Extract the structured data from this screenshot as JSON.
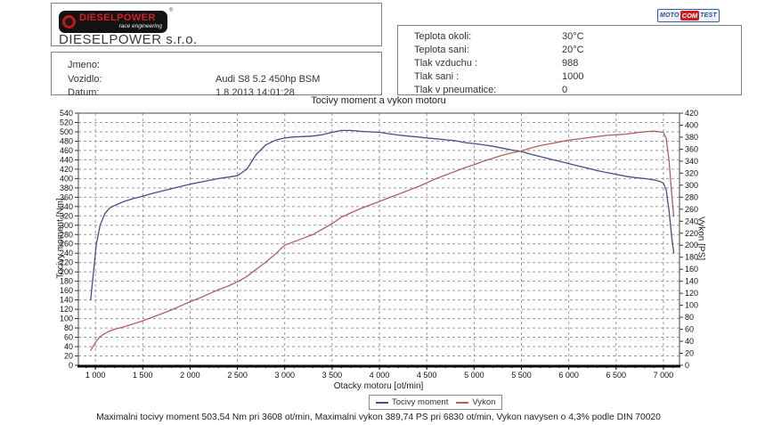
{
  "header": {
    "logo": {
      "brand": "DIESELPOWER",
      "tagline": "race engineering",
      "registered": "®",
      "company": "DIESELPOWER s.r.o."
    },
    "info_rows": [
      {
        "label": "Jmeno:",
        "value": ""
      },
      {
        "label": "Vozidlo:",
        "value": "Audi S8 5.2 450hp BSM"
      },
      {
        "label": "Datum:",
        "value": "1.8.2013 14:01:28"
      }
    ],
    "param_rows": [
      {
        "label": "Teplota okoli:",
        "value": "30°C"
      },
      {
        "label": "Teplota sani:",
        "value": "20°C"
      },
      {
        "label": "Tlak vzduchu :",
        "value": "988"
      },
      {
        "label": "Tlak sani :",
        "value": "1000"
      },
      {
        "label": "Tlak v pneumatice:",
        "value": "0"
      }
    ],
    "mototest_logo": {
      "part1": "MOTO",
      "part2": "COM",
      "part3": "TEST"
    }
  },
  "chart_data": {
    "type": "line",
    "title": "Tocivy moment a vykon motoru",
    "xlabel": "Otacky motoru [ot/min]",
    "ylabel_left": "Tocivy moment [Nm]",
    "ylabel_right": "Vykon [PS]",
    "xlim": [
      820,
      7170
    ],
    "ylim_left": [
      0,
      540
    ],
    "ylim_right": [
      0,
      420
    ],
    "x_ticks": [
      1000,
      1500,
      2000,
      2500,
      3000,
      3500,
      4000,
      4500,
      5000,
      5500,
      6000,
      6500,
      7000
    ],
    "x_minor_step": 100,
    "y_tick_step": 20,
    "grid": true,
    "grid_color": "#9a9a9a",
    "legend_position": "bottom-center",
    "max_torque": {
      "value_nm": 503.54,
      "rpm": 3608
    },
    "max_power": {
      "value_ps": 389.74,
      "rpm": 6830
    },
    "series": [
      {
        "name": "Tocivy moment",
        "axis": "left",
        "color": "#4a4a8f",
        "points": [
          [
            950,
            140
          ],
          [
            980,
            200
          ],
          [
            1010,
            260
          ],
          [
            1050,
            300
          ],
          [
            1100,
            325
          ],
          [
            1150,
            337
          ],
          [
            1200,
            342
          ],
          [
            1300,
            351
          ],
          [
            1400,
            357
          ],
          [
            1500,
            362
          ],
          [
            1600,
            368
          ],
          [
            1700,
            373
          ],
          [
            1800,
            378
          ],
          [
            1900,
            383
          ],
          [
            2000,
            388
          ],
          [
            2100,
            392
          ],
          [
            2200,
            396
          ],
          [
            2300,
            400
          ],
          [
            2400,
            403
          ],
          [
            2500,
            406
          ],
          [
            2600,
            420
          ],
          [
            2700,
            452
          ],
          [
            2800,
            472
          ],
          [
            2900,
            482
          ],
          [
            3000,
            487
          ],
          [
            3100,
            489
          ],
          [
            3200,
            490
          ],
          [
            3300,
            491
          ],
          [
            3400,
            494
          ],
          [
            3500,
            499
          ],
          [
            3600,
            503
          ],
          [
            3700,
            503
          ],
          [
            3800,
            501
          ],
          [
            3900,
            500
          ],
          [
            4000,
            499
          ],
          [
            4100,
            496
          ],
          [
            4200,
            493
          ],
          [
            4300,
            491
          ],
          [
            4400,
            489
          ],
          [
            4500,
            487
          ],
          [
            4600,
            485
          ],
          [
            4700,
            483
          ],
          [
            4800,
            481
          ],
          [
            4900,
            477
          ],
          [
            5000,
            475
          ],
          [
            5100,
            472
          ],
          [
            5200,
            469
          ],
          [
            5300,
            465
          ],
          [
            5400,
            461
          ],
          [
            5500,
            458
          ],
          [
            5600,
            452
          ],
          [
            5700,
            447
          ],
          [
            5800,
            442
          ],
          [
            5900,
            437
          ],
          [
            6000,
            432
          ],
          [
            6100,
            427
          ],
          [
            6200,
            422
          ],
          [
            6300,
            417
          ],
          [
            6400,
            413
          ],
          [
            6500,
            409
          ],
          [
            6600,
            405
          ],
          [
            6700,
            402
          ],
          [
            6800,
            400
          ],
          [
            6900,
            397
          ],
          [
            6960,
            394
          ],
          [
            7000,
            390
          ],
          [
            7030,
            375
          ],
          [
            7060,
            330
          ],
          [
            7090,
            270
          ],
          [
            7110,
            240
          ]
        ]
      },
      {
        "name": "Vykon",
        "axis": "right",
        "color": "#b45f5c",
        "points": [
          [
            950,
            25
          ],
          [
            1000,
            38
          ],
          [
            1050,
            48
          ],
          [
            1100,
            53
          ],
          [
            1150,
            57
          ],
          [
            1200,
            60
          ],
          [
            1300,
            64
          ],
          [
            1400,
            69
          ],
          [
            1500,
            74
          ],
          [
            1600,
            80
          ],
          [
            1700,
            86
          ],
          [
            1800,
            92
          ],
          [
            1900,
            99
          ],
          [
            2000,
            106
          ],
          [
            2100,
            112
          ],
          [
            2200,
            119
          ],
          [
            2300,
            126
          ],
          [
            2400,
            132
          ],
          [
            2500,
            139
          ],
          [
            2600,
            148
          ],
          [
            2700,
            160
          ],
          [
            2800,
            172
          ],
          [
            2900,
            185
          ],
          [
            3000,
            200
          ],
          [
            3100,
            206
          ],
          [
            3200,
            212
          ],
          [
            3300,
            218
          ],
          [
            3400,
            227
          ],
          [
            3500,
            236
          ],
          [
            3600,
            247
          ],
          [
            3700,
            254
          ],
          [
            3800,
            261
          ],
          [
            3900,
            267
          ],
          [
            4000,
            273
          ],
          [
            4100,
            279
          ],
          [
            4200,
            285
          ],
          [
            4300,
            291
          ],
          [
            4400,
            297
          ],
          [
            4500,
            304
          ],
          [
            4600,
            311
          ],
          [
            4700,
            317
          ],
          [
            4800,
            323
          ],
          [
            4900,
            329
          ],
          [
            5000,
            334
          ],
          [
            5100,
            340
          ],
          [
            5200,
            345
          ],
          [
            5300,
            350
          ],
          [
            5400,
            354
          ],
          [
            5500,
            357
          ],
          [
            5600,
            362
          ],
          [
            5700,
            366
          ],
          [
            5800,
            369
          ],
          [
            5900,
            372
          ],
          [
            6000,
            375
          ],
          [
            6100,
            377
          ],
          [
            6200,
            379
          ],
          [
            6300,
            381
          ],
          [
            6400,
            383
          ],
          [
            6500,
            384
          ],
          [
            6600,
            385
          ],
          [
            6700,
            387
          ],
          [
            6800,
            389
          ],
          [
            6900,
            390
          ],
          [
            6960,
            389
          ],
          [
            7000,
            388
          ],
          [
            7030,
            378
          ],
          [
            7060,
            340
          ],
          [
            7090,
            280
          ],
          [
            7110,
            248
          ]
        ]
      }
    ]
  },
  "footer": {
    "summary": "Maximalni tocivy moment 503,54 Nm pri 3608 ot/min,  Maximalni vykon 389,74 PS pri 6830 ot/min,  Vykon navysen o 4,3% podle DIN 70020"
  }
}
